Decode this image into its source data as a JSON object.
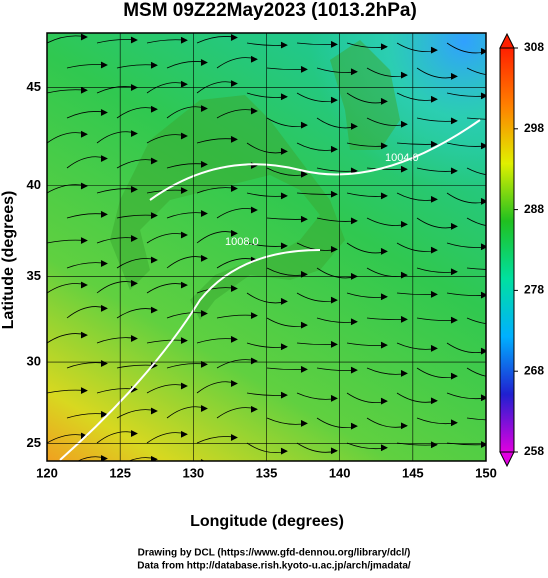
{
  "chart_data": {
    "type": "map",
    "title": "MSM 09Z22May2023 (1013.2hPa)",
    "x_label": "Longitude (degrees)",
    "y_label": "Latitude  (degrees)",
    "xlim": [
      120,
      150
    ],
    "xticks": [
      120,
      125,
      130,
      135,
      140,
      145,
      150
    ],
    "ylim": [
      23.9,
      47.6
    ],
    "yticks": [
      25,
      30,
      35,
      40,
      45
    ],
    "projection": "mercator",
    "colorbar": {
      "lim": [
        258,
        308
      ],
      "ticks": [
        258,
        268,
        278,
        288,
        298,
        308
      ],
      "colors": [
        "#e000e0",
        "#2020d0",
        "#00b0ff",
        "#00e0a0",
        "#20c020",
        "#e0f000",
        "#ff8000",
        "#ff2000"
      ]
    },
    "annotations": [
      "1008.0",
      "1004.0"
    ],
    "footer": [
      "Drawing by DCL (https://www.gfd-dennou.org/library/dcl/)",
      "Data from http://database.rish.kyoto-u.ac.jp/arch/jmadata/"
    ]
  }
}
